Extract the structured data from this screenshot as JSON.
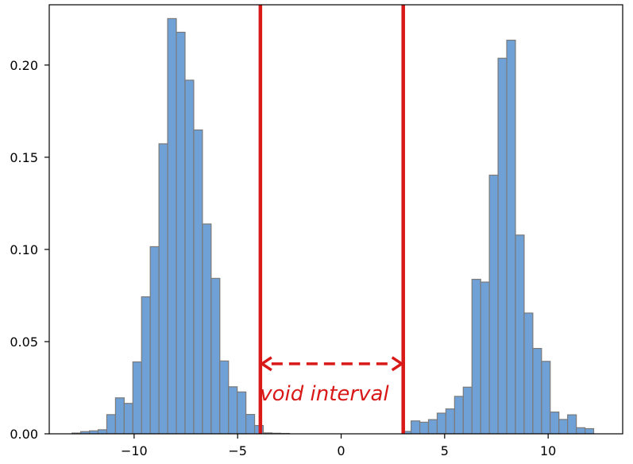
{
  "chart_data": {
    "type": "bar",
    "title": "",
    "xlabel": "",
    "ylabel": "",
    "xlim": [
      -14.1,
      13.6
    ],
    "ylim": [
      0,
      0.2327
    ],
    "grid": false,
    "xticks": [
      -10,
      -5,
      0,
      5,
      10
    ],
    "xtick_labels": [
      "−10",
      "−5",
      "0",
      "5",
      "10"
    ],
    "yticks": [
      0.0,
      0.05,
      0.1,
      0.15,
      0.2
    ],
    "ytick_labels": [
      "0.00",
      "0.05",
      "0.10",
      "0.15",
      "0.20"
    ],
    "bin_width": 0.42,
    "bin_edges": [
      -13.0,
      -12.58,
      -12.16,
      -11.74,
      -11.32,
      -10.9,
      -10.48,
      -10.06,
      -9.64,
      -9.22,
      -8.8,
      -8.38,
      -7.96,
      -7.54,
      -7.12,
      -6.7,
      -6.28,
      -5.86,
      -5.44,
      -5.02,
      -4.6,
      -4.18,
      -3.76,
      -3.34,
      -2.92,
      -2.5,
      -2.08,
      -1.66,
      -1.24,
      -0.82,
      -0.4,
      0.02,
      0.44,
      0.86,
      1.28,
      1.7,
      2.12,
      2.54,
      2.96,
      3.38,
      3.8,
      4.22,
      4.64,
      5.06,
      5.48,
      5.9,
      6.32,
      6.74,
      7.16,
      7.58,
      8.0,
      8.42,
      8.84,
      9.26,
      9.68,
      10.1,
      10.52,
      10.94,
      11.36,
      11.78,
      12.2
    ],
    "values": [
      0.0004,
      0.0012,
      0.0016,
      0.0022,
      0.0104,
      0.0195,
      0.0165,
      0.039,
      0.0743,
      0.1015,
      0.1573,
      0.2252,
      0.2178,
      0.1918,
      0.1648,
      0.1138,
      0.0843,
      0.0395,
      0.0255,
      0.0227,
      0.0105,
      0.0045,
      0.0005,
      0.0003,
      0.0002,
      0.0,
      0.0,
      0.0,
      0.0,
      0.0,
      0.0,
      0.0,
      0.0,
      0.0,
      0.0,
      0.0,
      0.0,
      0.0,
      0.0013,
      0.007,
      0.0063,
      0.0077,
      0.0112,
      0.0135,
      0.0203,
      0.0253,
      0.0838,
      0.0823,
      0.1403,
      0.2037,
      0.2135,
      0.1078,
      0.0655,
      0.0463,
      0.0393,
      0.0118,
      0.0078,
      0.0103,
      0.0033,
      0.0028
    ],
    "colors": {
      "bar_fill": "#6fa0d6",
      "bar_edge": "#7a7a7a",
      "annotation": "#d91818"
    },
    "annotations": {
      "vlines": [
        -3.9,
        3.0
      ],
      "arrow": {
        "x_start": -3.9,
        "x_end": 3.0,
        "y": 0.038,
        "style": "dashed, double-headed"
      },
      "label": "void interval",
      "label_x": -4.0,
      "label_y": 0.022
    }
  }
}
